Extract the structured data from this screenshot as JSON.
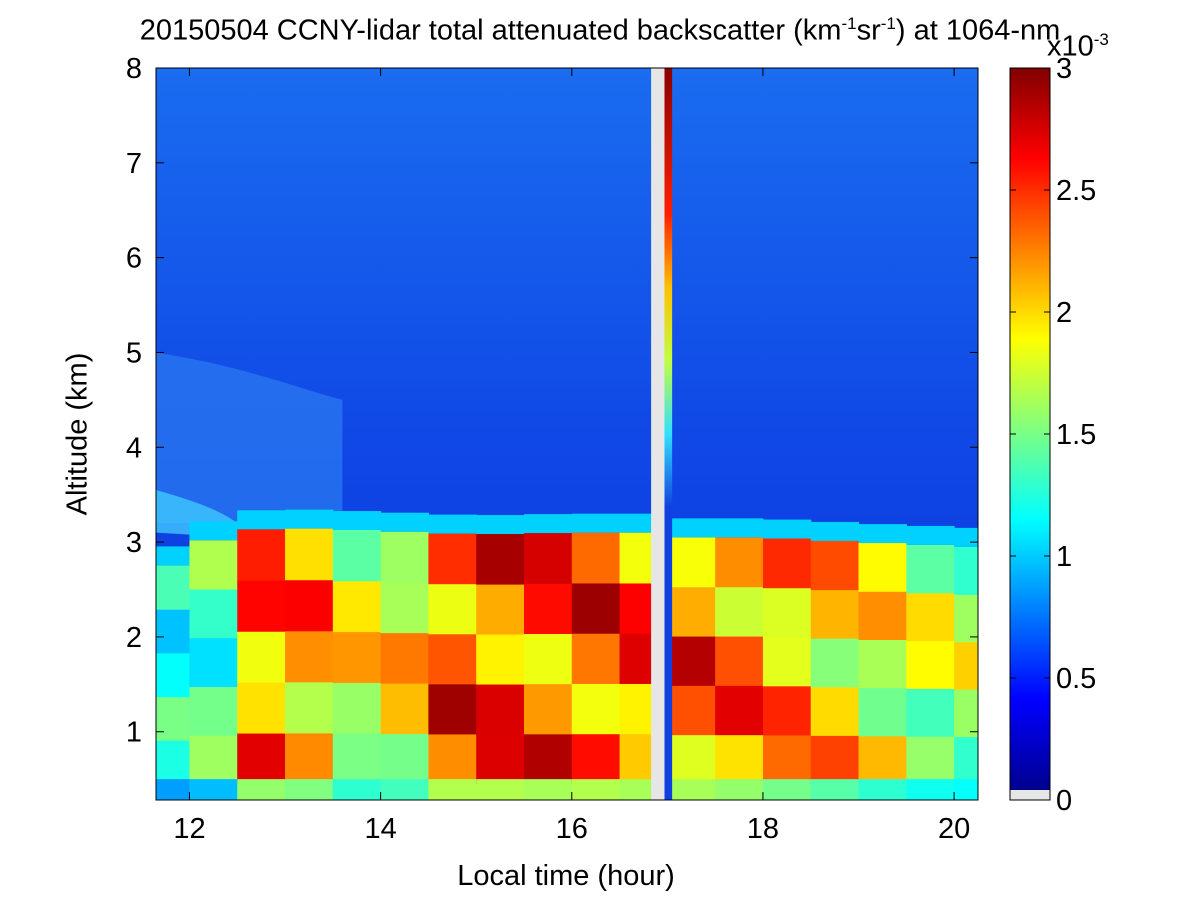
{
  "chart_data": {
    "type": "heatmap",
    "title": {
      "text_main": "20150504 CCNY-lidar total attenuated backscatter (km",
      "sup1": "-1",
      "text_mid": "sr",
      "sup2": "-1",
      "text_end": ") at 1064-nm"
    },
    "xlabel": "Local time (hour)",
    "ylabel": "Altitude (km)",
    "xlim": [
      11.65,
      20.25
    ],
    "ylim": [
      0.28,
      8.0
    ],
    "x_ticks": [
      12,
      14,
      16,
      18,
      20
    ],
    "y_ticks": [
      1,
      2,
      3,
      4,
      5,
      6,
      7,
      8
    ],
    "colorbar": {
      "range": [
        0,
        3
      ],
      "ticks": [
        0,
        0.5,
        1,
        1.5,
        2,
        2.5,
        3
      ],
      "tick_labels": [
        "0",
        "0.5",
        "1",
        "1.5",
        "2",
        "2.5",
        "3"
      ],
      "multiplier_base": "x10",
      "multiplier_exp": "-3",
      "colormap": "jet",
      "nodata_color": "#e6e6e6"
    },
    "data_gap": {
      "x_start": 16.83,
      "x_end": 16.97
    },
    "saturated_column": {
      "x_start": 16.97,
      "x_end": 17.05
    },
    "aerosol_layer_top": [
      {
        "x": 11.65,
        "y": 2.7
      },
      {
        "x": 12.2,
        "y": 3.0
      },
      {
        "x": 12.5,
        "y": 3.12
      },
      {
        "x": 13.0,
        "y": 3.15
      },
      {
        "x": 14.0,
        "y": 3.12
      },
      {
        "x": 15.0,
        "y": 3.08
      },
      {
        "x": 16.0,
        "y": 3.1
      },
      {
        "x": 16.8,
        "y": 3.1
      },
      {
        "x": 17.1,
        "y": 3.05
      },
      {
        "x": 18.0,
        "y": 3.05
      },
      {
        "x": 19.0,
        "y": 3.0
      },
      {
        "x": 20.25,
        "y": 2.95
      }
    ],
    "mean_backscatter_in_layer": [
      {
        "x": 11.75,
        "v": 1.4
      },
      {
        "x": 12.25,
        "v": 1.55
      },
      {
        "x": 12.75,
        "v": 2.6
      },
      {
        "x": 13.25,
        "v": 2.5
      },
      {
        "x": 13.75,
        "v": 2.1
      },
      {
        "x": 14.25,
        "v": 2.2
      },
      {
        "x": 14.75,
        "v": 2.75
      },
      {
        "x": 15.25,
        "v": 2.75
      },
      {
        "x": 15.75,
        "v": 2.7
      },
      {
        "x": 16.25,
        "v": 2.75
      },
      {
        "x": 16.75,
        "v": 2.7
      },
      {
        "x": 17.25,
        "v": 2.7
      },
      {
        "x": 17.75,
        "v": 2.6
      },
      {
        "x": 18.25,
        "v": 2.45
      },
      {
        "x": 18.75,
        "v": 2.3
      },
      {
        "x": 19.25,
        "v": 2.1
      },
      {
        "x": 19.75,
        "v": 1.95
      },
      {
        "x": 20.25,
        "v": 1.9
      }
    ]
  }
}
